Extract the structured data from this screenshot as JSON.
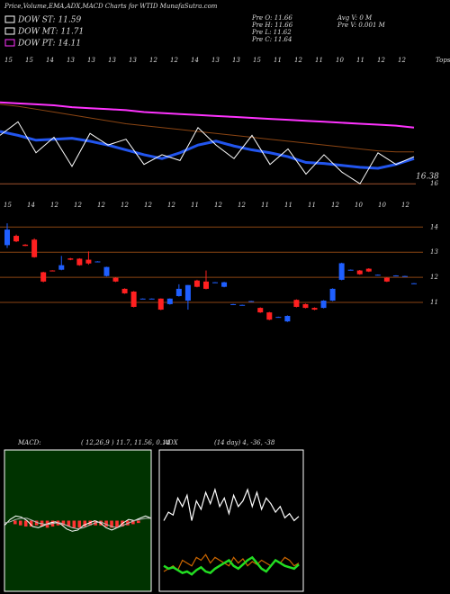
{
  "header": {
    "title": "Price,Volume,EMA,ADX,MACD Charts for WTID MunafaSutra.com"
  },
  "legend": [
    {
      "label": "DOW ST: 11.59",
      "color": "#ffffff"
    },
    {
      "label": "DOW MT: 11.71",
      "color": "#ffffff"
    },
    {
      "label": "DOW PT: 14.11",
      "color": "#ff33ff"
    }
  ],
  "stats": [
    "Pre O: 11.66",
    "Pre H: 11.66",
    "Pre L: 11.62",
    "Pre C: 11.64"
  ],
  "volume_stats": [
    "Avg V: 0 M",
    "Pre V: 0.001 M"
  ],
  "chart_data": [
    {
      "type": "line",
      "top_labels": [
        "15",
        "15",
        "14",
        "13",
        "13",
        "13",
        "13",
        "12",
        "12",
        "14",
        "13",
        "13",
        "15",
        "11",
        "12",
        "11",
        "10",
        "11",
        "12",
        "12"
      ],
      "corner_label": "Tops",
      "bottom_labels": [
        "15",
        "14",
        "12",
        "12",
        "12",
        "12",
        "12",
        "12",
        "11",
        "12",
        "12",
        "11",
        "11",
        "11",
        "12",
        "10",
        "10",
        "12"
      ],
      "last_label": "16.38",
      "level": 16,
      "ylim": [
        15.5,
        22
      ],
      "series": [
        {
          "name": "EMA long",
          "color": "#ff33ff",
          "values": [
            20.2,
            20.15,
            20.1,
            20.05,
            19.95,
            19.9,
            19.85,
            19.8,
            19.7,
            19.65,
            19.6,
            19.55,
            19.5,
            19.45,
            19.4,
            19.35,
            19.3,
            19.25,
            19.2,
            19.15,
            19.1,
            19.05,
            19.0,
            18.9
          ]
        },
        {
          "name": "EMA mid",
          "color": "#8b4513",
          "values": [
            20.1,
            20.0,
            19.85,
            19.7,
            19.55,
            19.4,
            19.25,
            19.1,
            19.0,
            18.9,
            18.8,
            18.7,
            18.6,
            18.5,
            18.4,
            18.3,
            18.2,
            18.1,
            18.0,
            17.9,
            17.8,
            17.7,
            17.65,
            17.65
          ]
        },
        {
          "name": "EMA short",
          "color": "#2255ee",
          "values": [
            18.7,
            18.5,
            18.25,
            18.3,
            18.35,
            18.2,
            18.0,
            17.75,
            17.5,
            17.3,
            17.6,
            18.0,
            18.2,
            17.95,
            17.75,
            17.6,
            17.4,
            17.1,
            17.05,
            16.95,
            16.85,
            16.8,
            17.0,
            17.3
          ]
        },
        {
          "name": "Price",
          "color": "#ffffff",
          "values": [
            18.5,
            19.2,
            17.6,
            18.4,
            16.9,
            18.6,
            18.0,
            18.3,
            17.0,
            17.5,
            17.2,
            18.9,
            18.0,
            17.3,
            18.5,
            17.0,
            17.8,
            16.5,
            17.5,
            16.6,
            16.0,
            17.6,
            17.0,
            17.4
          ]
        }
      ]
    },
    {
      "type": "candlestick",
      "yticks": [
        14,
        13,
        12,
        11
      ],
      "ylim": [
        9.6,
        14.8
      ],
      "up_color": "#1f5fff",
      "down_color": "#ff2020",
      "open": [
        13.28,
        13.65,
        13.3,
        13.5,
        12.2,
        12.27,
        12.3,
        12.75,
        12.74,
        12.7,
        12.63,
        12.05,
        11.98,
        11.54,
        11.43,
        11.15,
        11.15,
        11.15,
        10.93,
        11.25,
        11.07,
        11.87,
        11.83,
        11.8,
        11.62,
        10.93,
        10.9,
        11.05,
        10.78,
        10.6,
        10.42,
        10.24,
        11.1,
        10.93,
        10.78,
        10.78,
        11.07,
        11.9,
        12.3,
        12.27,
        12.34,
        12.1,
        11.98,
        12.07,
        12.05,
        11.76
      ],
      "high": [
        14.15,
        13.7,
        13.32,
        13.55,
        12.22,
        12.28,
        12.85,
        12.77,
        12.76,
        13.03,
        12.64,
        12.42,
        12.0,
        11.56,
        11.45,
        11.16,
        11.16,
        11.16,
        11.16,
        11.72,
        11.69,
        11.9,
        12.27,
        11.81,
        11.82,
        10.94,
        10.91,
        11.06,
        10.8,
        10.62,
        10.43,
        10.48,
        11.12,
        10.95,
        10.8,
        11.09,
        11.56,
        12.58,
        12.31,
        12.29,
        12.36,
        12.11,
        12.0,
        12.08,
        12.06,
        11.77
      ],
      "low": [
        13.17,
        13.4,
        13.24,
        12.78,
        11.8,
        12.24,
        12.28,
        12.68,
        12.46,
        12.5,
        12.62,
        12.03,
        11.81,
        11.34,
        10.8,
        11.14,
        11.14,
        10.69,
        10.91,
        11.23,
        10.71,
        11.6,
        11.52,
        11.79,
        11.6,
        10.92,
        10.89,
        11.04,
        10.58,
        10.29,
        10.41,
        10.22,
        10.8,
        10.76,
        10.69,
        10.76,
        11.05,
        11.88,
        12.29,
        12.1,
        12.21,
        12.09,
        11.81,
        12.06,
        12.04,
        11.74
      ],
      "close": [
        13.9,
        13.43,
        13.25,
        12.8,
        11.83,
        12.25,
        12.48,
        12.7,
        12.48,
        12.55,
        12.63,
        12.41,
        11.83,
        11.36,
        10.82,
        11.15,
        11.15,
        10.71,
        11.15,
        11.54,
        11.69,
        11.62,
        11.54,
        11.8,
        11.8,
        10.93,
        10.9,
        11.05,
        10.6,
        10.31,
        10.42,
        10.46,
        10.82,
        10.78,
        10.71,
        11.07,
        11.54,
        12.56,
        12.3,
        12.12,
        12.23,
        12.1,
        11.83,
        12.07,
        12.05,
        11.76
      ]
    },
    {
      "type": "macd",
      "label": "MACD:",
      "params": "( 12,26,9 ) 11.7, 11.56, 0.14",
      "bg": "#003300",
      "ylim": [
        -3,
        3
      ],
      "series": [
        {
          "name": "MACD",
          "color": "#ffffff",
          "values": [
            -0.2,
            0.05,
            0.2,
            0.15,
            0.0,
            -0.25,
            -0.3,
            -0.2,
            -0.1,
            -0.05,
            -0.15,
            -0.35,
            -0.45,
            -0.4,
            -0.2,
            -0.1,
            0.0,
            -0.1,
            -0.3,
            -0.4,
            -0.3,
            -0.1,
            0.05,
            0.0,
            0.1,
            0.2,
            0.1
          ]
        },
        {
          "name": "Signal",
          "color": "#bbbbbb",
          "values": [
            -0.1,
            -0.05,
            0.05,
            0.1,
            0.1,
            0.0,
            -0.1,
            -0.15,
            -0.15,
            -0.1,
            -0.1,
            -0.2,
            -0.3,
            -0.35,
            -0.3,
            -0.2,
            -0.1,
            -0.05,
            -0.15,
            -0.25,
            -0.3,
            -0.2,
            -0.1,
            0.0,
            0.05,
            0.1,
            0.1
          ]
        }
      ],
      "histogram": [
        -0.15,
        -0.2,
        -0.25,
        -0.25,
        -0.2,
        -0.25,
        -0.3,
        -0.25,
        -0.2,
        -0.2,
        -0.25,
        -0.3,
        -0.3,
        -0.25,
        -0.2,
        -0.2,
        -0.2,
        -0.25,
        -0.3,
        -0.3,
        -0.25,
        -0.2,
        -0.15,
        -0.1
      ],
      "hist_color": "#ff3333"
    },
    {
      "type": "adx",
      "label": "ADX",
      "params": "(14 day) 4, -36, -38",
      "ylim": [
        0,
        100
      ],
      "series": [
        {
          "name": "+DI",
          "color": "#ffffff",
          "values": [
            50,
            56,
            54,
            66,
            60,
            68,
            50,
            64,
            58,
            70,
            62,
            72,
            60,
            66,
            55,
            68,
            60,
            64,
            72,
            60,
            70,
            58,
            66,
            62,
            56,
            60,
            52,
            55,
            50,
            53
          ]
        },
        {
          "name": "-DI",
          "color": "#cc6600",
          "values": [
            14,
            16,
            18,
            15,
            22,
            20,
            18,
            24,
            22,
            26,
            20,
            24,
            22,
            20,
            18,
            24,
            20,
            23,
            18,
            21,
            19,
            22,
            20,
            18,
            22,
            20,
            24,
            22,
            18,
            20
          ]
        },
        {
          "name": "ADX",
          "color": "#22dd22",
          "values": [
            18,
            16,
            17,
            15,
            13,
            14,
            12,
            15,
            17,
            14,
            13,
            16,
            18,
            20,
            22,
            18,
            16,
            19,
            22,
            24,
            20,
            16,
            14,
            18,
            22,
            20,
            18,
            17,
            16,
            19
          ]
        }
      ]
    }
  ]
}
